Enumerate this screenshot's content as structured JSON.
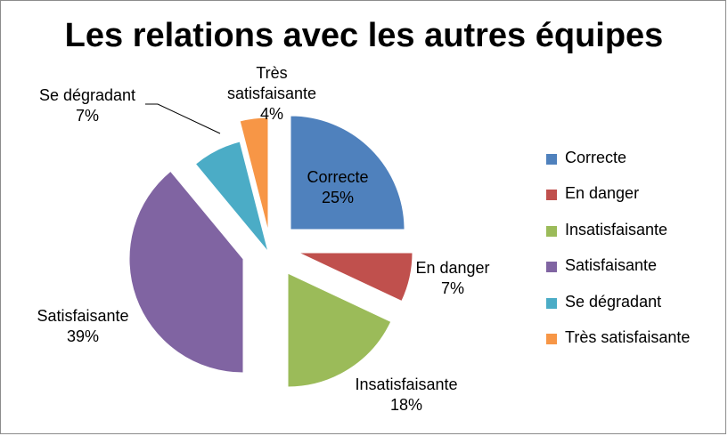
{
  "chart_data": {
    "type": "pie",
    "title": "Les relations avec les autres équipes",
    "slices": [
      {
        "name": "Correcte",
        "value": 25,
        "label": "25%",
        "color": "#4F81BD"
      },
      {
        "name": "En danger",
        "value": 7,
        "label": "7%",
        "color": "#C0504D"
      },
      {
        "name": "Insatisfaisante",
        "value": 18,
        "label": "18%",
        "color": "#9BBB59"
      },
      {
        "name": "Satisfaisante",
        "value": 39,
        "label": "39%",
        "color": "#8064A2"
      },
      {
        "name": "Se dégradant",
        "value": 7,
        "label": "7%",
        "color": "#4BACC6"
      },
      {
        "name": "Très satisfaisante",
        "value": 4,
        "label": "4%",
        "color": "#F79646"
      }
    ],
    "legend_position": "right",
    "exploded": true
  }
}
